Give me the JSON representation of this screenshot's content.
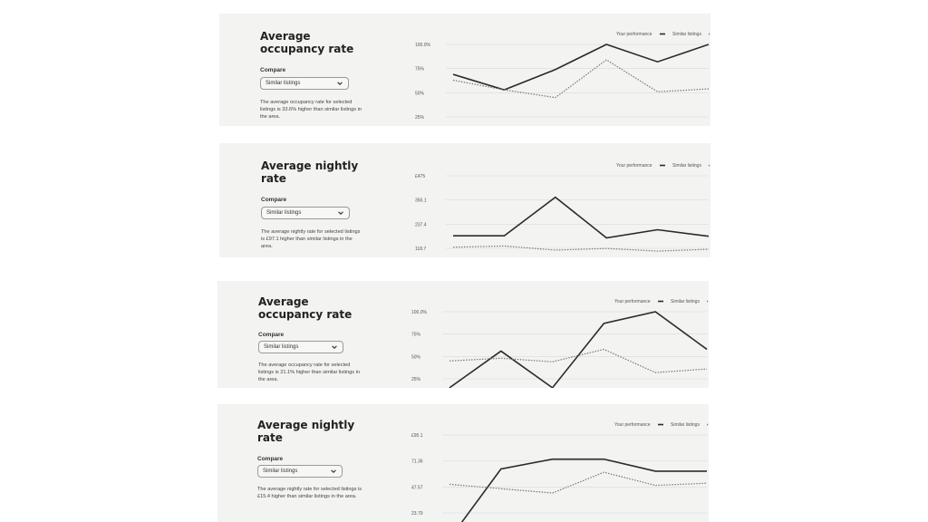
{
  "colors": {
    "card_bg": "#f3f3f2",
    "line": "#2b2b2b",
    "dotted": "#777777",
    "grid": "#d9d9d9"
  },
  "icons": {
    "dropdown": "chevron-down-icon"
  },
  "cards": [
    {
      "title": "Average\noccupancy rate",
      "compare_label": "Compare",
      "select_value": "Similar listings",
      "description": "The average occupancy rate for selected listings is 33.6% higher than similar listings in the area."
    },
    {
      "title": "Average nightly\nrate",
      "compare_label": "Compare",
      "select_value": "Similar listings",
      "description": "The average nightly rate for selected listings is £97.1 higher than similar listings in the area."
    },
    {
      "title": "Average\noccupancy rate",
      "compare_label": "Compare",
      "select_value": "Similar listings",
      "description": "The average occupancy rate for selected listings is 21.1% higher than similar listings in the area."
    },
    {
      "title": "Average nightly\nrate",
      "compare_label": "Compare",
      "select_value": "Similar listings",
      "description": "The average nightly rate for selected listings is £15.4 higher than similar listings in the area."
    }
  ],
  "chart_data": [
    {
      "type": "line",
      "legend_position": "top-right",
      "ytick_labels": [
        "100.0%",
        "75%",
        "50%",
        "25%"
      ],
      "ytick_values": [
        100,
        75,
        50,
        25
      ],
      "ylim": [
        25,
        100
      ],
      "series": [
        {
          "name": "Your performance",
          "style": "solid",
          "values": [
            69,
            53,
            74,
            100,
            82,
            100
          ]
        },
        {
          "name": "Similar listings",
          "style": "dotted",
          "values": [
            63,
            53,
            45,
            84,
            51,
            54
          ]
        }
      ]
    },
    {
      "type": "line",
      "legend_position": "top-right",
      "ytick_labels": [
        "£475",
        "356.1",
        "237.4",
        "118.7"
      ],
      "ytick_values": [
        475,
        356.1,
        237.4,
        118.7
      ],
      "ylim": [
        118.7,
        475
      ],
      "series": [
        {
          "name": "Your performance",
          "style": "solid",
          "values": [
            180,
            180,
            370,
            170,
            210,
            178
          ]
        },
        {
          "name": "Similar listings",
          "style": "dotted",
          "values": [
            124,
            130,
            110,
            118,
            105,
            114
          ]
        }
      ]
    },
    {
      "type": "line",
      "legend_position": "top-right",
      "ytick_labels": [
        "100.0%",
        "75%",
        "50%",
        "25%"
      ],
      "ytick_values": [
        100,
        75,
        50,
        25
      ],
      "ylim": [
        25,
        100
      ],
      "series": [
        {
          "name": "Your performance",
          "style": "solid",
          "values": [
            15,
            56,
            15,
            87,
            100,
            58
          ]
        },
        {
          "name": "Similar listings",
          "style": "dotted",
          "values": [
            45,
            48,
            44,
            58,
            32,
            36
          ]
        }
      ]
    },
    {
      "type": "line",
      "legend_position": "top-right",
      "ytick_labels": [
        "£95.1",
        "71.36",
        "47.57",
        "23.79"
      ],
      "ytick_values": [
        95.1,
        71.36,
        47.57,
        23.79
      ],
      "ylim": [
        23.79,
        95.1
      ],
      "series": [
        {
          "name": "Your performance",
          "style": "solid",
          "values": [
            0,
            64,
            73,
            73,
            62,
            62
          ]
        },
        {
          "name": "Similar listings",
          "style": "dotted",
          "values": [
            50,
            46,
            42,
            61,
            49,
            51
          ]
        }
      ]
    }
  ]
}
